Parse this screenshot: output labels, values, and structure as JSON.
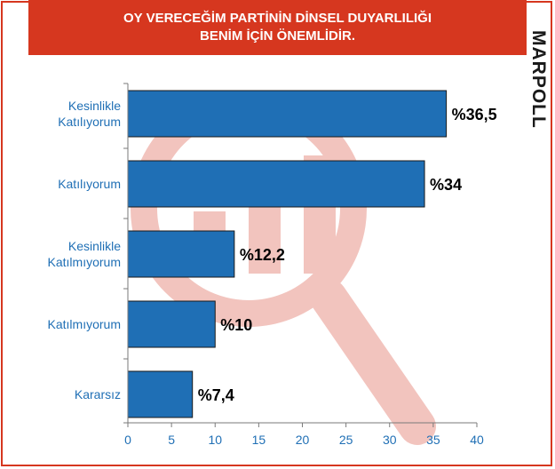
{
  "header": {
    "title_line1": "OY VERECEĞİM PARTİNİN DİNSEL DUYARLILIĞI",
    "title_line2": "BENİM İÇİN ÖNEMLİDİR."
  },
  "brand": {
    "logo_text": "MARPOLL",
    "color": "#1a1a1a"
  },
  "colors": {
    "accent": "#d6371f",
    "bar": "#1f6fb5",
    "label": "#1f6fb5",
    "watermark": "#f2c4be"
  },
  "chart_data": {
    "type": "bar",
    "orientation": "horizontal",
    "categories": [
      [
        "Kesinlikle",
        "Katılıyorum"
      ],
      [
        "Katılıyorum"
      ],
      [
        "Kesinlikle",
        "Katılmıyorum"
      ],
      [
        "Katılmıyorum"
      ],
      [
        "Kararsız"
      ]
    ],
    "values": [
      36.5,
      34,
      12.2,
      10,
      7.4
    ],
    "value_labels": [
      "%36,5",
      "%34",
      "%12,2",
      "%10",
      "%7,4"
    ],
    "xlim": [
      0,
      40
    ],
    "xticks": [
      0,
      5,
      10,
      15,
      20,
      25,
      30,
      35,
      40
    ],
    "grid": false,
    "title": "OY VERECEĞİM PARTİNİN DİNSEL DUYARLILIĞI BENİM İÇİN ÖNEMLİDİR."
  }
}
